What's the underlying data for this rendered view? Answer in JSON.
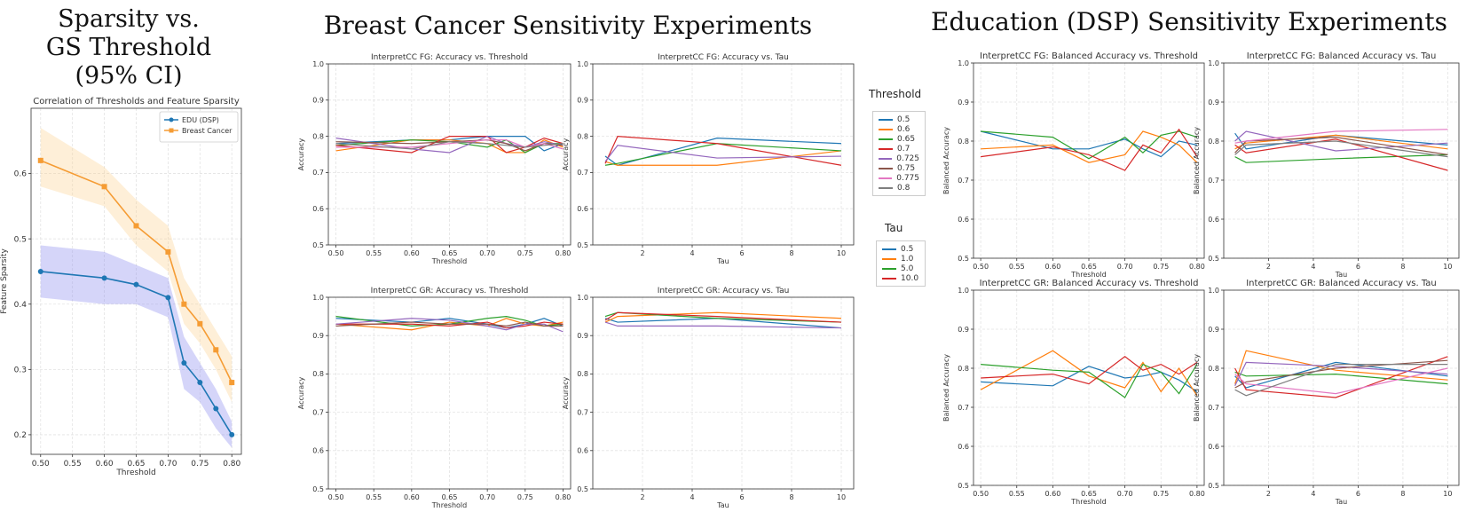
{
  "headings": {
    "sparsity": [
      "Sparsity vs.",
      "GS Threshold",
      "(95% CI)"
    ],
    "breast": "Breast Cancer Sensitivity Experiments",
    "education": "Education (DSP) Sensitivity Experiments"
  },
  "legend_threshold": {
    "title": "Threshold",
    "items": [
      {
        "label": "0.5",
        "color": "#1f77b4"
      },
      {
        "label": "0.6",
        "color": "#ff7f0e"
      },
      {
        "label": "0.65",
        "color": "#2ca02c"
      },
      {
        "label": "0.7",
        "color": "#d62728"
      },
      {
        "label": "0.725",
        "color": "#9467bd"
      },
      {
        "label": "0.75",
        "color": "#8c564b"
      },
      {
        "label": "0.775",
        "color": "#e377c2"
      },
      {
        "label": "0.8",
        "color": "#7f7f7f"
      }
    ]
  },
  "legend_tau": {
    "title": "Tau",
    "items": [
      {
        "label": "0.5",
        "color": "#1f77b4"
      },
      {
        "label": "1.0",
        "color": "#ff7f0e"
      },
      {
        "label": "5.0",
        "color": "#2ca02c"
      },
      {
        "label": "10.0",
        "color": "#d62728"
      }
    ]
  },
  "chart_data": [
    {
      "id": "sparsity",
      "type": "line",
      "title": "Correlation of Thresholds and Feature Sparsity",
      "xlabel": "Threshold",
      "ylabel": "Feature Sparsity",
      "xlim": [
        0.485,
        0.815
      ],
      "ylim": [
        0.17,
        0.7
      ],
      "xticks": [
        0.5,
        0.55,
        0.6,
        0.65,
        0.7,
        0.75,
        0.8
      ],
      "xtick_labels": [
        "0.50",
        "0.55",
        "0.60",
        "0.65",
        "0.70",
        "0.75",
        "0.80"
      ],
      "yticks": [
        0.2,
        0.3,
        0.4,
        0.5,
        0.6
      ],
      "ytick_labels": [
        "0.2",
        "0.3",
        "0.4",
        "0.5",
        "0.6"
      ],
      "legend_position": "top-right",
      "x": [
        0.5,
        0.6,
        0.65,
        0.7,
        0.725,
        0.75,
        0.775,
        0.8
      ],
      "series": [
        {
          "name": "EDU (DSP)",
          "color": "#1f77b4",
          "band_color": "#8888ee",
          "marker": "circle",
          "values": [
            0.45,
            0.44,
            0.43,
            0.41,
            0.31,
            0.28,
            0.24,
            0.2
          ],
          "lower": [
            0.41,
            0.4,
            0.4,
            0.38,
            0.27,
            0.25,
            0.21,
            0.18
          ],
          "upper": [
            0.49,
            0.48,
            0.46,
            0.44,
            0.35,
            0.31,
            0.27,
            0.22
          ]
        },
        {
          "name": "Breast Cancer",
          "color": "#f59c34",
          "band_color": "#fbd08e",
          "marker": "square",
          "values": [
            0.62,
            0.58,
            0.52,
            0.48,
            0.4,
            0.37,
            0.33,
            0.28
          ],
          "lower": [
            0.58,
            0.55,
            0.49,
            0.45,
            0.37,
            0.34,
            0.3,
            0.25
          ],
          "upper": [
            0.67,
            0.61,
            0.56,
            0.52,
            0.44,
            0.4,
            0.36,
            0.32
          ]
        }
      ]
    },
    {
      "id": "bc_fg_thr",
      "type": "line",
      "title": "InterpretCC FG: Accuracy vs. Threshold",
      "xlabel": "Threshold",
      "ylabel": "Accuracy",
      "xlim": [
        0.49,
        0.81
      ],
      "ylim": [
        0.5,
        1.0
      ],
      "xticks": [
        0.5,
        0.55,
        0.6,
        0.65,
        0.7,
        0.75,
        0.8
      ],
      "xtick_labels": [
        "0.50",
        "0.55",
        "0.60",
        "0.65",
        "0.70",
        "0.75",
        "0.80"
      ],
      "yticks": [
        0.5,
        0.6,
        0.7,
        0.8,
        0.9,
        1.0
      ],
      "ytick_labels": [
        "0.5",
        "0.6",
        "0.7",
        "0.8",
        "0.9",
        "1.0"
      ],
      "x": [
        0.5,
        0.6,
        0.65,
        0.7,
        0.725,
        0.75,
        0.775,
        0.8
      ],
      "series": [
        {
          "color": "#1f77b4",
          "values": [
            0.78,
            0.79,
            0.79,
            0.8,
            0.8,
            0.8,
            0.76,
            0.78
          ]
        },
        {
          "color": "#ff7f0e",
          "values": [
            0.76,
            0.79,
            0.79,
            0.78,
            0.755,
            0.755,
            0.79,
            0.77
          ]
        },
        {
          "color": "#2ca02c",
          "values": [
            0.775,
            0.79,
            0.785,
            0.77,
            0.79,
            0.755,
            0.78,
            0.78
          ]
        },
        {
          "color": "#d62728",
          "values": [
            0.775,
            0.755,
            0.8,
            0.8,
            0.755,
            0.77,
            0.795,
            0.78
          ]
        },
        {
          "color": "#9467bd",
          "values": [
            0.795,
            0.765,
            0.755,
            0.8,
            0.78,
            0.77,
            0.785,
            0.775
          ]
        },
        {
          "color": "#8c564b",
          "values": [
            0.785,
            0.78,
            0.785,
            0.79,
            0.78,
            0.76,
            0.78,
            0.775
          ]
        },
        {
          "color": "#e377c2",
          "values": [
            0.77,
            0.77,
            0.78,
            0.79,
            0.79,
            0.77,
            0.78,
            0.765
          ]
        },
        {
          "color": "#7f7f7f",
          "values": [
            0.78,
            0.765,
            0.785,
            0.78,
            0.775,
            0.77,
            0.775,
            0.78
          ]
        }
      ]
    },
    {
      "id": "bc_fg_tau",
      "type": "line",
      "title": "InterpretCC FG: Accuracy vs. Tau",
      "xlabel": "Tau",
      "ylabel": "Accuracy",
      "xlim": [
        0.0,
        10.5
      ],
      "ylim": [
        0.5,
        1.0
      ],
      "xticks": [
        2,
        4,
        6,
        8,
        10
      ],
      "xtick_labels": [
        "2",
        "4",
        "6",
        "8",
        "10"
      ],
      "yticks": [
        0.5,
        0.6,
        0.7,
        0.8,
        0.9,
        1.0
      ],
      "ytick_labels": [
        "0.5",
        "0.6",
        "0.7",
        "0.8",
        "0.9",
        "1.0"
      ],
      "x": [
        0.5,
        1.0,
        5.0,
        10.0
      ],
      "series": [
        {
          "color": "#1f77b4",
          "values": [
            0.745,
            0.72,
            0.795,
            0.78
          ]
        },
        {
          "color": "#ff7f0e",
          "values": [
            0.73,
            0.72,
            0.72,
            0.76
          ]
        },
        {
          "color": "#2ca02c",
          "values": [
            0.72,
            0.725,
            0.78,
            0.76
          ]
        },
        {
          "color": "#d62728",
          "values": [
            0.725,
            0.8,
            0.78,
            0.72
          ]
        },
        {
          "color": "#9467bd",
          "values": [
            0.73,
            0.775,
            0.74,
            0.745
          ]
        }
      ]
    },
    {
      "id": "bc_gr_thr",
      "type": "line",
      "title": "InterpretCC GR: Accuracy vs. Threshold",
      "xlabel": "Threshold",
      "ylabel": "Accuracy",
      "xlim": [
        0.49,
        0.81
      ],
      "ylim": [
        0.5,
        1.0
      ],
      "xticks": [
        0.5,
        0.55,
        0.6,
        0.65,
        0.7,
        0.75,
        0.8
      ],
      "xtick_labels": [
        "0.50",
        "0.55",
        "0.60",
        "0.65",
        "0.70",
        "0.75",
        "0.80"
      ],
      "yticks": [
        0.5,
        0.6,
        0.7,
        0.8,
        0.9,
        1.0
      ],
      "ytick_labels": [
        "0.5",
        "0.6",
        "0.7",
        "0.8",
        "0.9",
        "1.0"
      ],
      "x": [
        0.5,
        0.6,
        0.65,
        0.7,
        0.725,
        0.75,
        0.775,
        0.8
      ],
      "series": [
        {
          "color": "#1f77b4",
          "values": [
            0.945,
            0.935,
            0.945,
            0.93,
            0.92,
            0.93,
            0.945,
            0.925
          ]
        },
        {
          "color": "#ff7f0e",
          "values": [
            0.93,
            0.915,
            0.935,
            0.925,
            0.945,
            0.93,
            0.925,
            0.935
          ]
        },
        {
          "color": "#2ca02c",
          "values": [
            0.95,
            0.925,
            0.93,
            0.945,
            0.95,
            0.94,
            0.925,
            0.93
          ]
        },
        {
          "color": "#d62728",
          "values": [
            0.93,
            0.93,
            0.925,
            0.935,
            0.92,
            0.925,
            0.935,
            0.93
          ]
        },
        {
          "color": "#9467bd",
          "values": [
            0.93,
            0.945,
            0.94,
            0.925,
            0.915,
            0.93,
            0.93,
            0.91
          ]
        },
        {
          "color": "#8c564b",
          "values": [
            0.925,
            0.935,
            0.93,
            0.93,
            0.925,
            0.935,
            0.925,
            0.925
          ]
        }
      ]
    },
    {
      "id": "bc_gr_tau",
      "type": "line",
      "title": "InterpretCC GR: Accuracy vs. Tau",
      "xlabel": "Tau",
      "ylabel": "Accuracy",
      "xlim": [
        0.0,
        10.5
      ],
      "ylim": [
        0.5,
        1.0
      ],
      "xticks": [
        2,
        4,
        6,
        8,
        10
      ],
      "xtick_labels": [
        "2",
        "4",
        "6",
        "8",
        "10"
      ],
      "yticks": [
        0.5,
        0.6,
        0.7,
        0.8,
        0.9,
        1.0
      ],
      "ytick_labels": [
        "0.5",
        "0.6",
        "0.7",
        "0.8",
        "0.9",
        "1.0"
      ],
      "x": [
        0.5,
        1.0,
        5.0,
        10.0
      ],
      "series": [
        {
          "color": "#1f77b4",
          "values": [
            0.945,
            0.935,
            0.945,
            0.92
          ]
        },
        {
          "color": "#ff7f0e",
          "values": [
            0.935,
            0.95,
            0.96,
            0.945
          ]
        },
        {
          "color": "#2ca02c",
          "values": [
            0.95,
            0.96,
            0.945,
            0.935
          ]
        },
        {
          "color": "#d62728",
          "values": [
            0.94,
            0.96,
            0.95,
            0.935
          ]
        },
        {
          "color": "#9467bd",
          "values": [
            0.935,
            0.925,
            0.925,
            0.92
          ]
        }
      ]
    },
    {
      "id": "edu_fg_thr",
      "type": "line",
      "title": "InterpretCC FG: Balanced Accuracy vs. Threshold",
      "xlabel": "Threshold",
      "ylabel": "Balanced Accuracy",
      "xlim": [
        0.49,
        0.81
      ],
      "ylim": [
        0.5,
        1.0
      ],
      "xticks": [
        0.5,
        0.55,
        0.6,
        0.65,
        0.7,
        0.75,
        0.8
      ],
      "xtick_labels": [
        "0.50",
        "0.55",
        "0.60",
        "0.65",
        "0.70",
        "0.75",
        "0.80"
      ],
      "yticks": [
        0.5,
        0.6,
        0.7,
        0.8,
        0.9,
        1.0
      ],
      "ytick_labels": [
        "0.5",
        "0.6",
        "0.7",
        "0.8",
        "0.9",
        "1.0"
      ],
      "x": [
        0.5,
        0.6,
        0.65,
        0.7,
        0.725,
        0.75,
        0.775,
        0.8
      ],
      "series": [
        {
          "color": "#1f77b4",
          "values": [
            0.825,
            0.78,
            0.78,
            0.805,
            0.78,
            0.76,
            0.8,
            0.79
          ]
        },
        {
          "color": "#ff7f0e",
          "values": [
            0.78,
            0.79,
            0.745,
            0.765,
            0.825,
            0.81,
            0.79,
            0.745
          ]
        },
        {
          "color": "#2ca02c",
          "values": [
            0.825,
            0.81,
            0.755,
            0.81,
            0.77,
            0.815,
            0.825,
            0.81
          ]
        },
        {
          "color": "#d62728",
          "values": [
            0.76,
            0.785,
            0.765,
            0.725,
            0.79,
            0.77,
            0.83,
            0.76
          ]
        }
      ]
    },
    {
      "id": "edu_fg_tau",
      "type": "line",
      "title": "InterpretCC FG: Balanced Accuracy vs. Tau",
      "xlabel": "Tau",
      "ylabel": "Balanced Accuracy",
      "xlim": [
        0.0,
        10.5
      ],
      "ylim": [
        0.5,
        1.0
      ],
      "xticks": [
        2,
        4,
        6,
        8,
        10
      ],
      "xtick_labels": [
        "2",
        "4",
        "6",
        "8",
        "10"
      ],
      "yticks": [
        0.5,
        0.6,
        0.7,
        0.8,
        0.9,
        1.0
      ],
      "ytick_labels": [
        "0.5",
        "0.6",
        "0.7",
        "0.8",
        "0.9",
        "1.0"
      ],
      "x": [
        0.5,
        1.0,
        5.0,
        10.0
      ],
      "series": [
        {
          "color": "#1f77b4",
          "values": [
            0.82,
            0.78,
            0.815,
            0.79
          ]
        },
        {
          "color": "#ff7f0e",
          "values": [
            0.78,
            0.795,
            0.815,
            0.78
          ]
        },
        {
          "color": "#2ca02c",
          "values": [
            0.76,
            0.745,
            0.755,
            0.765
          ]
        },
        {
          "color": "#d62728",
          "values": [
            0.79,
            0.77,
            0.805,
            0.725
          ]
        },
        {
          "color": "#9467bd",
          "values": [
            0.8,
            0.825,
            0.775,
            0.795
          ]
        },
        {
          "color": "#8c564b",
          "values": [
            0.77,
            0.8,
            0.81,
            0.765
          ]
        },
        {
          "color": "#e377c2",
          "values": [
            0.795,
            0.8,
            0.825,
            0.83
          ]
        },
        {
          "color": "#7f7f7f",
          "values": [
            0.765,
            0.79,
            0.8,
            0.76
          ]
        }
      ]
    },
    {
      "id": "edu_gr_thr",
      "type": "line",
      "title": "InterpretCC GR: Balanced Accuracy vs. Threshold",
      "xlabel": "Threshold",
      "ylabel": "Balanced Accuracy",
      "xlim": [
        0.49,
        0.81
      ],
      "ylim": [
        0.5,
        1.0
      ],
      "xticks": [
        0.5,
        0.55,
        0.6,
        0.65,
        0.7,
        0.75,
        0.8
      ],
      "xtick_labels": [
        "0.50",
        "0.55",
        "0.60",
        "0.65",
        "0.70",
        "0.75",
        "0.80"
      ],
      "yticks": [
        0.5,
        0.6,
        0.7,
        0.8,
        0.9,
        1.0
      ],
      "ytick_labels": [
        "0.5",
        "0.6",
        "0.7",
        "0.8",
        "0.9",
        "1.0"
      ],
      "x": [
        0.5,
        0.6,
        0.65,
        0.7,
        0.725,
        0.75,
        0.775,
        0.8
      ],
      "series": [
        {
          "color": "#1f77b4",
          "values": [
            0.765,
            0.755,
            0.805,
            0.775,
            0.78,
            0.79,
            0.77,
            0.74
          ]
        },
        {
          "color": "#ff7f0e",
          "values": [
            0.745,
            0.845,
            0.78,
            0.75,
            0.815,
            0.74,
            0.8,
            0.73
          ]
        },
        {
          "color": "#2ca02c",
          "values": [
            0.81,
            0.795,
            0.79,
            0.725,
            0.81,
            0.79,
            0.735,
            0.81
          ]
        },
        {
          "color": "#d62728",
          "values": [
            0.775,
            0.785,
            0.76,
            0.83,
            0.795,
            0.81,
            0.785,
            0.815
          ]
        }
      ]
    },
    {
      "id": "edu_gr_tau",
      "type": "line",
      "title": "InterpretCC GR: Balanced Accuracy vs. Tau",
      "xlabel": "Tau",
      "ylabel": "Balanced Accuracy",
      "xlim": [
        0.0,
        10.5
      ],
      "ylim": [
        0.5,
        1.0
      ],
      "xticks": [
        2,
        4,
        6,
        8,
        10
      ],
      "xtick_labels": [
        "2",
        "4",
        "6",
        "8",
        "10"
      ],
      "yticks": [
        0.5,
        0.6,
        0.7,
        0.8,
        0.9,
        1.0
      ],
      "ytick_labels": [
        "0.5",
        "0.6",
        "0.7",
        "0.8",
        "0.9",
        "1.0"
      ],
      "x": [
        0.5,
        1.0,
        5.0,
        10.0
      ],
      "series": [
        {
          "color": "#1f77b4",
          "values": [
            0.78,
            0.75,
            0.815,
            0.78
          ]
        },
        {
          "color": "#ff7f0e",
          "values": [
            0.76,
            0.845,
            0.795,
            0.77
          ]
        },
        {
          "color": "#2ca02c",
          "values": [
            0.79,
            0.78,
            0.785,
            0.76
          ]
        },
        {
          "color": "#d62728",
          "values": [
            0.8,
            0.745,
            0.725,
            0.83
          ]
        },
        {
          "color": "#9467bd",
          "values": [
            0.755,
            0.815,
            0.805,
            0.785
          ]
        },
        {
          "color": "#8c564b",
          "values": [
            0.75,
            0.765,
            0.8,
            0.82
          ]
        },
        {
          "color": "#e377c2",
          "values": [
            0.785,
            0.76,
            0.735,
            0.8
          ]
        },
        {
          "color": "#7f7f7f",
          "values": [
            0.745,
            0.73,
            0.81,
            0.81
          ]
        }
      ]
    }
  ]
}
